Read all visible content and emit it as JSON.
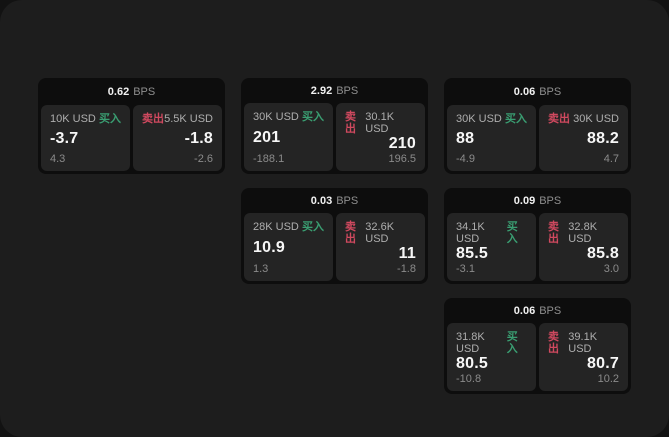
{
  "labels": {
    "bps_unit": "BPS",
    "buy": "买入",
    "sell": "卖出"
  },
  "colors": {
    "page_bg": "#1d1d1d",
    "card_bg": "#0d0d0d",
    "pane_bg": "#242424",
    "buy": "#3a9e72",
    "sell": "#d0495f"
  },
  "cards": [
    {
      "bps": "0.62",
      "buy": {
        "size": "10K USD",
        "price": "-3.7",
        "delta": "4.3"
      },
      "sell": {
        "size": "5.5K USD",
        "price": "-1.8",
        "delta": "-2.6"
      }
    },
    {
      "bps": "2.92",
      "buy": {
        "size": "30K USD",
        "price": "201",
        "delta": "-188.1"
      },
      "sell": {
        "size": "30.1K USD",
        "price": "210",
        "delta": "196.5"
      }
    },
    {
      "bps": "0.06",
      "buy": {
        "size": "30K USD",
        "price": "88",
        "delta": "-4.9"
      },
      "sell": {
        "size": "30K USD",
        "price": "88.2",
        "delta": "4.7"
      }
    },
    {
      "bps": "0.03",
      "buy": {
        "size": "28K USD",
        "price": "10.9",
        "delta": "1.3"
      },
      "sell": {
        "size": "32.6K USD",
        "price": "11",
        "delta": "-1.8"
      }
    },
    {
      "bps": "0.09",
      "buy": {
        "size": "34.1K USD",
        "price": "85.5",
        "delta": "-3.1"
      },
      "sell": {
        "size": "32.8K USD",
        "price": "85.8",
        "delta": "3.0"
      }
    },
    {
      "bps": "0.06",
      "buy": {
        "size": "31.8K USD",
        "price": "80.5",
        "delta": "-10.8"
      },
      "sell": {
        "size": "39.1K USD",
        "price": "80.7",
        "delta": "10.2"
      }
    }
  ]
}
